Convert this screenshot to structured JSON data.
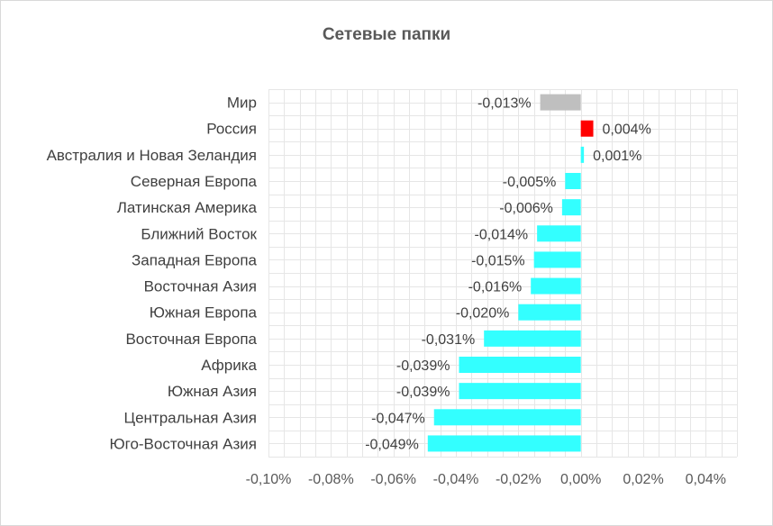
{
  "chart_data": {
    "type": "bar",
    "orientation": "horizontal",
    "title": "Сетевые папки",
    "xlabel": "",
    "ylabel": "",
    "xlim": [
      -0.1,
      0.05
    ],
    "grid": true,
    "legend": "none",
    "x_ticks": [
      -0.1,
      -0.08,
      -0.06,
      -0.04,
      -0.02,
      0.0,
      0.02,
      0.04
    ],
    "x_tick_labels": [
      "-0,10%",
      "-0,08%",
      "-0,06%",
      "-0,04%",
      "-0,02%",
      "0,00%",
      "0,02%",
      "0,04%"
    ],
    "categories": [
      "Мир",
      "Россия",
      "Австралия и Новая Зеландия",
      "Северная Европа",
      "Латинская Америка",
      "Ближний Восток",
      "Западная Европа",
      "Восточная Азия",
      "Южная Европа",
      "Восточная Европа",
      "Африка",
      "Южная Азия",
      "Центральная Азия",
      "Юго-Восточная Азия"
    ],
    "values": [
      -0.013,
      0.004,
      0.001,
      -0.005,
      -0.006,
      -0.014,
      -0.015,
      -0.016,
      -0.02,
      -0.031,
      -0.039,
      -0.039,
      -0.047,
      -0.049
    ],
    "value_labels": [
      "-0,013%",
      "0,004%",
      "0,001%",
      "-0,005%",
      "-0,006%",
      "-0,014%",
      "-0,015%",
      "-0,016%",
      "-0,020%",
      "-0,031%",
      "-0,039%",
      "-0,039%",
      "-0,047%",
      "-0,049%"
    ],
    "bar_colors": [
      "#bfbfbf",
      "#ff0000",
      "#33ffff",
      "#33ffff",
      "#33ffff",
      "#33ffff",
      "#33ffff",
      "#33ffff",
      "#33ffff",
      "#33ffff",
      "#33ffff",
      "#33ffff",
      "#33ffff",
      "#33ffff"
    ],
    "grid_color": "#e6e6e6"
  }
}
